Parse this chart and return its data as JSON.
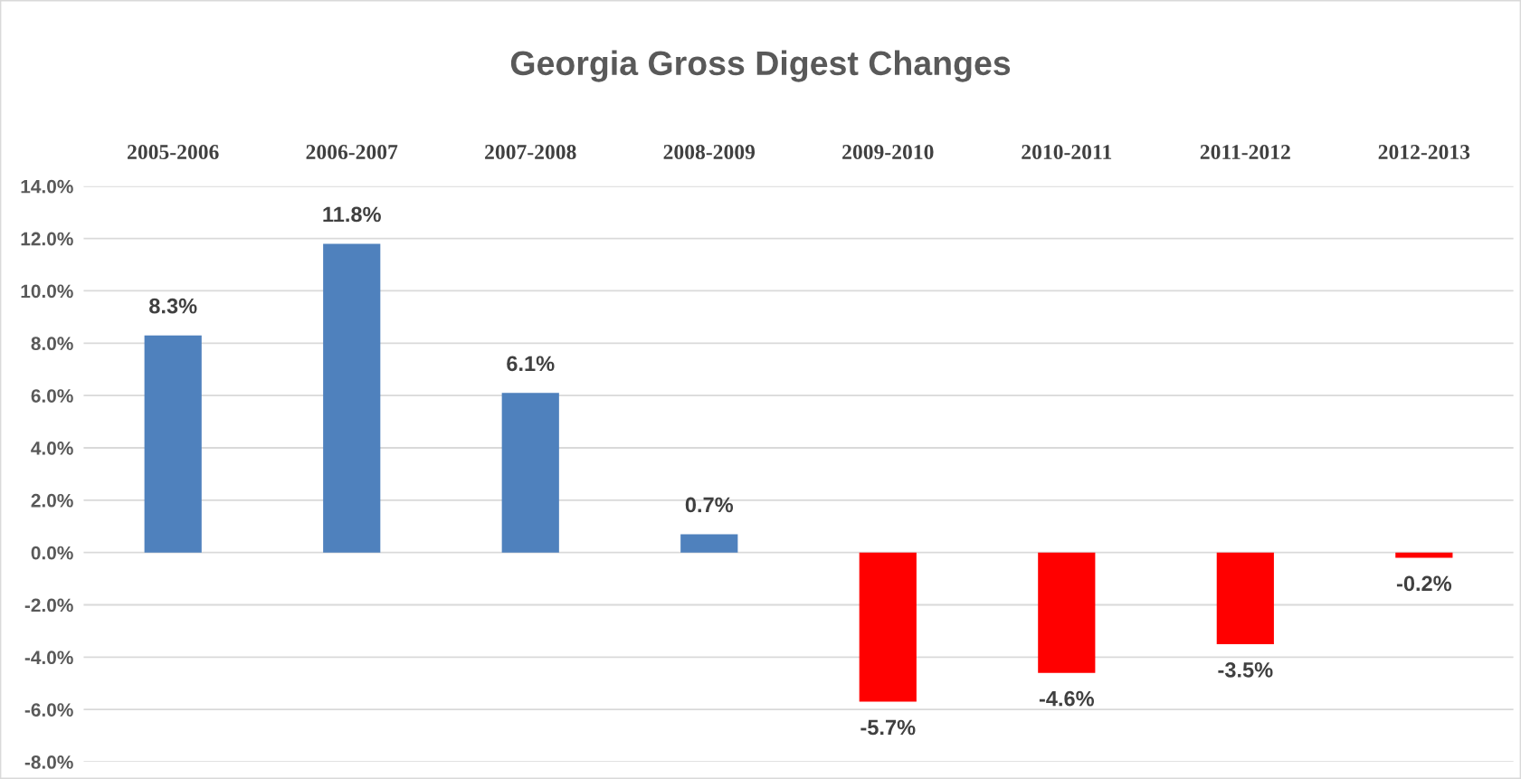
{
  "chart_data": {
    "type": "bar",
    "title": "Georgia Gross Digest Changes",
    "categories": [
      "2005-2006",
      "2006-2007",
      "2007-2008",
      "2008-2009",
      "2009-2010",
      "2010-2011",
      "2011-2012",
      "2012-2013"
    ],
    "values": [
      8.3,
      11.8,
      6.1,
      0.7,
      -5.7,
      -4.6,
      -3.5,
      -0.2
    ],
    "colors": [
      "#4f81bd",
      "#4f81bd",
      "#4f81bd",
      "#4f81bd",
      "#ff0000",
      "#ff0000",
      "#ff0000",
      "#ff0000"
    ],
    "value_labels": [
      "8.3%",
      "11.8%",
      "6.1%",
      "0.7%",
      "-5.7%",
      "-4.6%",
      "-3.5%",
      "-0.2%"
    ],
    "ylim": [
      -8,
      14
    ],
    "yticks": [
      {
        "value": -8,
        "label": "-8.0%"
      },
      {
        "value": -6,
        "label": "-6.0%"
      },
      {
        "value": -4,
        "label": "-4.0%"
      },
      {
        "value": -2,
        "label": "-2.0%"
      },
      {
        "value": 0,
        "label": "0.0%"
      },
      {
        "value": 2,
        "label": "2.0%"
      },
      {
        "value": 4,
        "label": "4.0%"
      },
      {
        "value": 6,
        "label": "6.0%"
      },
      {
        "value": 8,
        "label": "8.0%"
      },
      {
        "value": 10,
        "label": "10.0%"
      },
      {
        "value": 12,
        "label": "12.0%"
      },
      {
        "value": 14,
        "label": "14.0%"
      }
    ],
    "grid": "y",
    "legend": false
  }
}
